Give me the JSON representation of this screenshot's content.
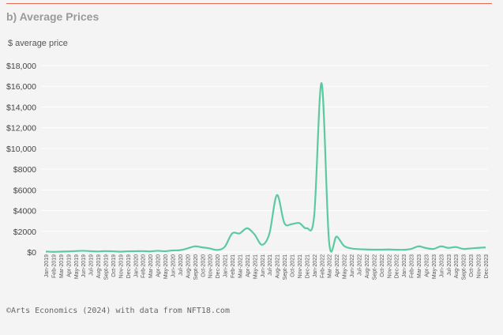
{
  "header": {
    "title": "b) Average Prices",
    "ylabel": "$ average price"
  },
  "footer": {
    "source": "©Arts Economics (2024) with data from NFT18.com"
  },
  "colors": {
    "line": "#5ccaa0",
    "rule": "#e06a5a",
    "grid": "#ffffff"
  },
  "chart_data": {
    "type": "line",
    "title": "b) Average Prices",
    "ylabel": "$ average price",
    "xlabel": "",
    "ylim": [
      0,
      18000
    ],
    "yticks": [
      0,
      2000,
      4000,
      6000,
      8000,
      10000,
      12000,
      14000,
      16000,
      18000
    ],
    "ytick_labels": [
      "$0",
      "$2000",
      "$4000",
      "$6000",
      "$8000",
      "$10,000",
      "$12,000",
      "$14,000",
      "$16,000",
      "$18,000"
    ],
    "grid": true,
    "categories": [
      "Jan-2019",
      "Feb-2019",
      "Mar-2019",
      "Apr-2019",
      "May-2019",
      "Jun-2019",
      "Jul-2019",
      "Aug-2019",
      "Sept-2019",
      "Oct-2019",
      "Nov-2019",
      "Dec-2019",
      "Jan-2020",
      "Feb-2020",
      "Mar-2020",
      "Apr-2020",
      "May-2020",
      "Jun-2020",
      "Jul-2020",
      "Aug-2020",
      "Sept-2020",
      "Oct-2020",
      "Nov-2020",
      "Dec-2020",
      "Jan-2021",
      "Feb-2021",
      "Mar-2021",
      "Apr-2021",
      "May-2021",
      "Jun-2021",
      "Jul-2021",
      "Aug-2021",
      "Sept-2021",
      "Oct-2021",
      "Nov-2021",
      "Dec-2021",
      "Jan-2022",
      "Feb-2022",
      "Mar-2022",
      "Apr-2022",
      "May-2022",
      "Jun-2022",
      "Jul-2022",
      "Aug-2022",
      "Sept-2022",
      "Oct-2022",
      "Nov-2022",
      "Dec-2022",
      "Jan-2023",
      "Feb-2023",
      "Mar-2023",
      "Apr-2023",
      "May-2023",
      "Jun-2023",
      "Jul-2023",
      "Aug-2023",
      "Sept-2023",
      "Oct-2023",
      "Nov-2023",
      "Dec-2023"
    ],
    "series": [
      {
        "values": [
          50,
          20,
          40,
          60,
          90,
          120,
          80,
          60,
          90,
          70,
          40,
          70,
          80,
          90,
          60,
          120,
          80,
          150,
          180,
          350,
          550,
          450,
          350,
          200,
          500,
          1800,
          1800,
          2300,
          1700,
          700,
          1800,
          5500,
          2800,
          2700,
          2800,
          2300,
          3500,
          16300,
          1000,
          1500,
          600,
          350,
          280,
          250,
          230,
          230,
          250,
          220,
          220,
          300,
          550,
          380,
          300,
          550,
          400,
          480,
          300,
          350,
          400,
          450
        ]
      }
    ]
  }
}
